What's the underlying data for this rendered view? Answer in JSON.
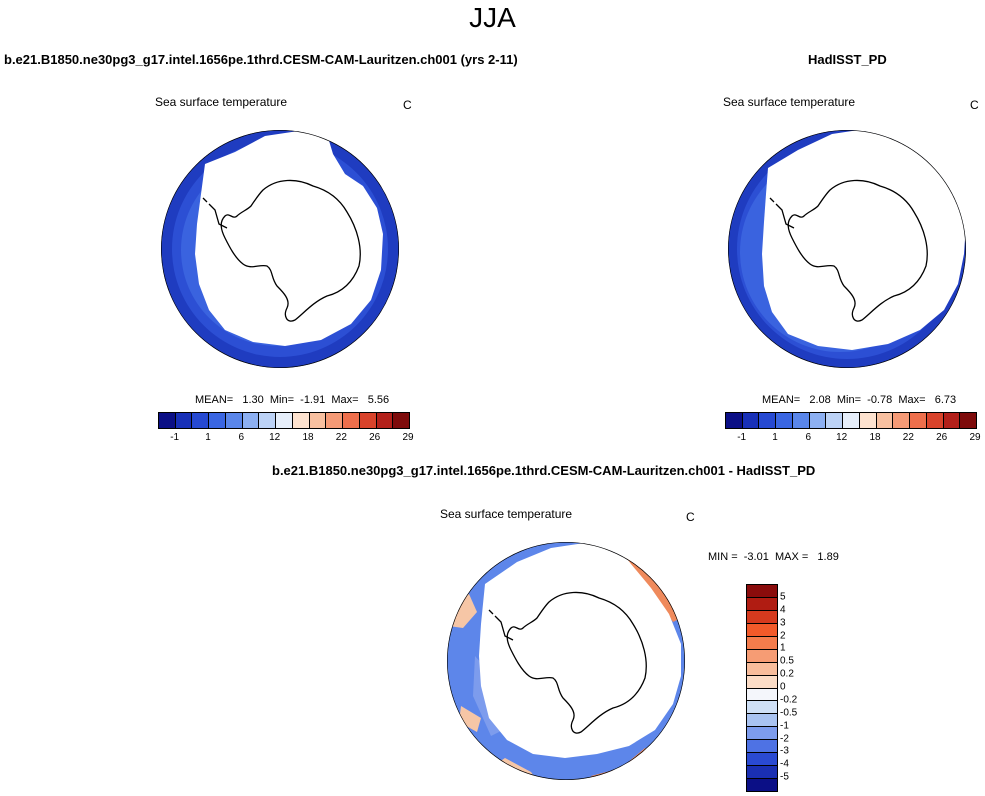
{
  "figure": {
    "season": "JJA",
    "colors": {
      "ocean_cold": "#3a63df",
      "ocean_mid": "#2c4fd4",
      "ocean_edge": "#1f3cc0",
      "land": "#ffffff",
      "coast": "#000000",
      "diff_base": "#5d86ea",
      "diff_warm": "#ef8a5c",
      "diff_light": "#f6c6a6"
    }
  },
  "chart_data": [
    {
      "type": "heatmap",
      "projection": "south-polar-stereographic",
      "case_title": "b.e21.B1850.ne30pg3_g17.intel.1656pe.1thrd.CESM-CAM-Lauritzen.ch001 (yrs 2-11)",
      "variable": "Sea surface temperature",
      "units": "C",
      "stats_line": "MEAN=   1.30  Min=  -1.91  Max=   5.56",
      "stats": {
        "mean": 1.3,
        "min": -1.91,
        "max": 5.56
      },
      "colorbar": {
        "orientation": "horizontal",
        "tick_labels": [
          "-1",
          "1",
          "6",
          "12",
          "18",
          "22",
          "26",
          "29"
        ],
        "colors": [
          "#0b0f86",
          "#1830b8",
          "#2649d2",
          "#3a66e2",
          "#5a86ea",
          "#8db0f2",
          "#bcd2f6",
          "#e6eefa",
          "#fde2cf",
          "#f8c0a0",
          "#f59a76",
          "#ee6f4c",
          "#d9432b",
          "#b3201a",
          "#7e0b0b"
        ]
      }
    },
    {
      "type": "heatmap",
      "projection": "south-polar-stereographic",
      "case_title": "HadISST_PD",
      "variable": "Sea surface temperature",
      "units": "C",
      "stats_line": "MEAN=   2.08  Min=  -0.78  Max=   6.73",
      "stats": {
        "mean": 2.08,
        "min": -0.78,
        "max": 6.73
      },
      "colorbar": {
        "orientation": "horizontal",
        "tick_labels": [
          "-1",
          "1",
          "6",
          "12",
          "18",
          "22",
          "26",
          "29"
        ],
        "colors": [
          "#0b0f86",
          "#1830b8",
          "#2649d2",
          "#3a66e2",
          "#5a86ea",
          "#8db0f2",
          "#bcd2f6",
          "#e6eefa",
          "#fde2cf",
          "#f8c0a0",
          "#f59a76",
          "#ee6f4c",
          "#d9432b",
          "#b3201a",
          "#7e0b0b"
        ]
      }
    },
    {
      "type": "heatmap",
      "projection": "south-polar-stereographic",
      "case_title": "b.e21.B1850.ne30pg3_g17.intel.1656pe.1thrd.CESM-CAM-Lauritzen.ch001 - HadISST_PD",
      "variable": "Sea surface temperature",
      "units": "C",
      "stats_line": "MIN =  -3.01  MAX =   1.89",
      "stats": {
        "min": -3.01,
        "max": 1.89
      },
      "colorbar": {
        "orientation": "vertical",
        "tick_labels": [
          "5",
          "4",
          "3",
          "2",
          "1",
          "0.5",
          "0.2",
          "0",
          "-0.2",
          "-0.5",
          "-1",
          "-2",
          "-3",
          "-4",
          "-5"
        ],
        "colors": [
          "#8a0c0c",
          "#b01c12",
          "#d63a1e",
          "#f25a2a",
          "#f47c4c",
          "#f69c74",
          "#f8bd9c",
          "#fbdcc6",
          "#f4f6fb",
          "#cfe0f6",
          "#a9c3f1",
          "#7d9ced",
          "#4e72e4",
          "#2a4ad2",
          "#1a2fb2",
          "#0b0f86"
        ]
      }
    }
  ]
}
